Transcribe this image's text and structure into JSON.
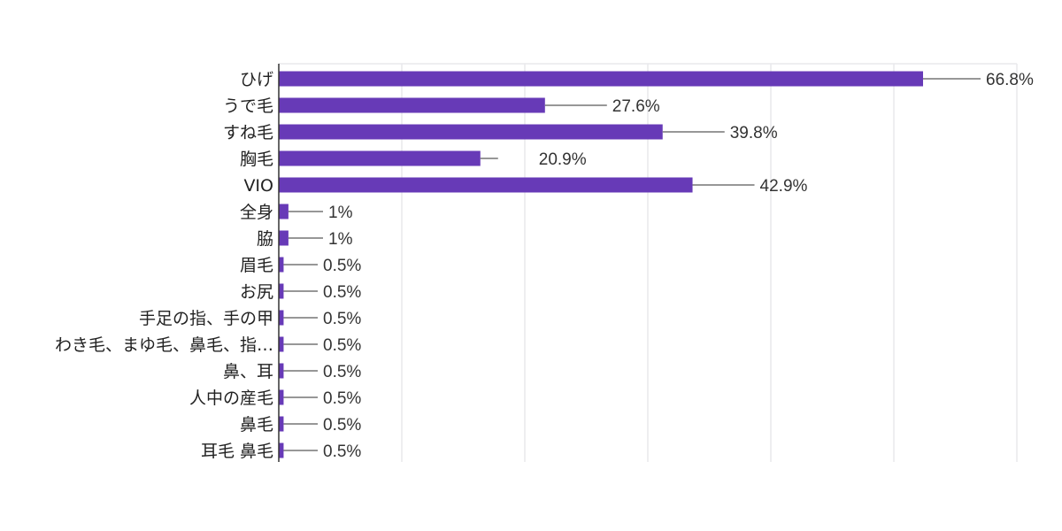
{
  "colors": {
    "bar": "#673ab7",
    "leader": "#757575",
    "grid": "#e8e8ec",
    "axis": "#333333",
    "background": "#ffffff"
  },
  "chart_data": {
    "type": "bar",
    "orientation": "horizontal",
    "title": "",
    "xlabel": "",
    "ylabel": "",
    "xlim": [
      0,
      75
    ],
    "grid": true,
    "legend": "none",
    "categories": [
      "ひげ",
      "うで毛",
      "すね毛",
      "胸毛",
      "VIO",
      "全身",
      "脇",
      "眉毛",
      "お尻",
      "手足の指、手の甲",
      "わき毛、まゆ毛、鼻毛、指…",
      "鼻、耳",
      "人中の産毛",
      "鼻毛",
      "耳毛 鼻毛"
    ],
    "values": [
      66.8,
      27.6,
      39.8,
      20.9,
      42.9,
      1,
      1,
      0.5,
      0.5,
      0.5,
      0.5,
      0.5,
      0.5,
      0.5,
      0.5
    ],
    "data_labels": [
      "66.8%",
      "27.6%",
      "39.8%",
      "20.9%",
      "42.9%",
      "1%",
      "1%",
      "0.5%",
      "0.5%",
      "0.5%",
      "0.5%",
      "0.5%",
      "0.5%",
      "0.5%",
      "0.5%"
    ]
  }
}
